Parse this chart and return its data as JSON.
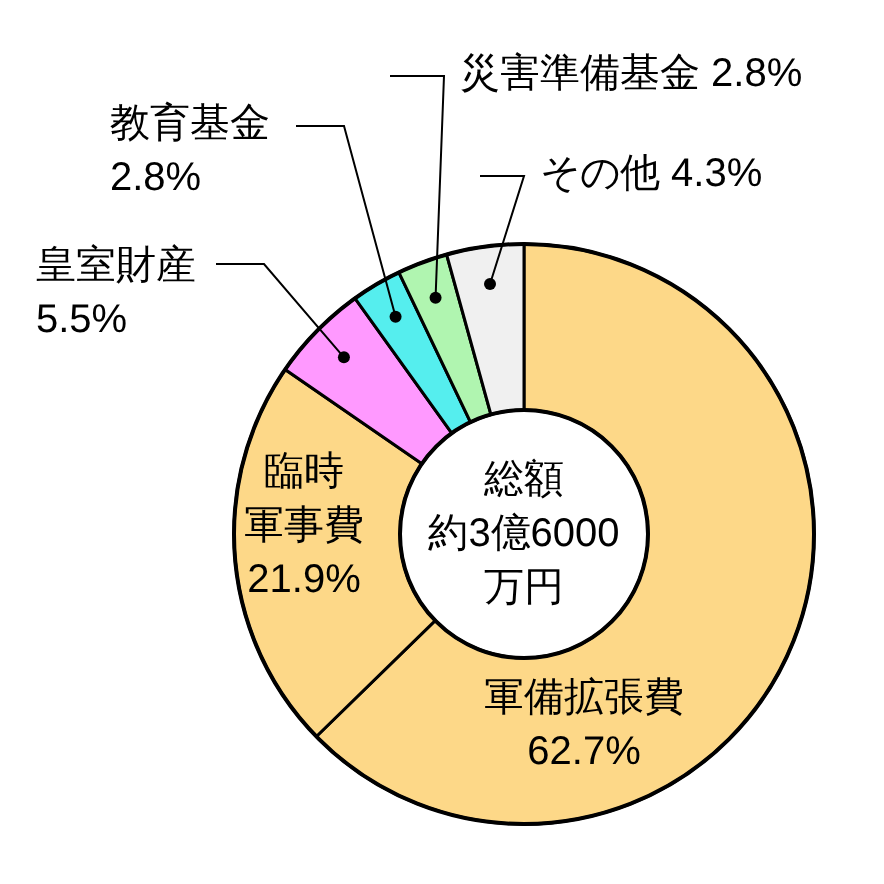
{
  "chart_data": {
    "type": "donut",
    "categories": [
      "軍備拡張費",
      "臨時軍事費",
      "皇室財産",
      "教育基金",
      "災害準備基金",
      "その他"
    ],
    "values": [
      62.7,
      21.9,
      5.5,
      2.8,
      2.8,
      4.3
    ],
    "value_labels": [
      "62.7%",
      "21.9%",
      "5.5%",
      "2.8%",
      "2.8%",
      "4.3%"
    ],
    "colors": [
      "#fdd888",
      "#fdd888",
      "#ff99ff",
      "#55eeee",
      "#b0f5b0",
      "#f0f0f0"
    ],
    "annotations": [
      "総額約3億6000万円"
    ]
  }
}
